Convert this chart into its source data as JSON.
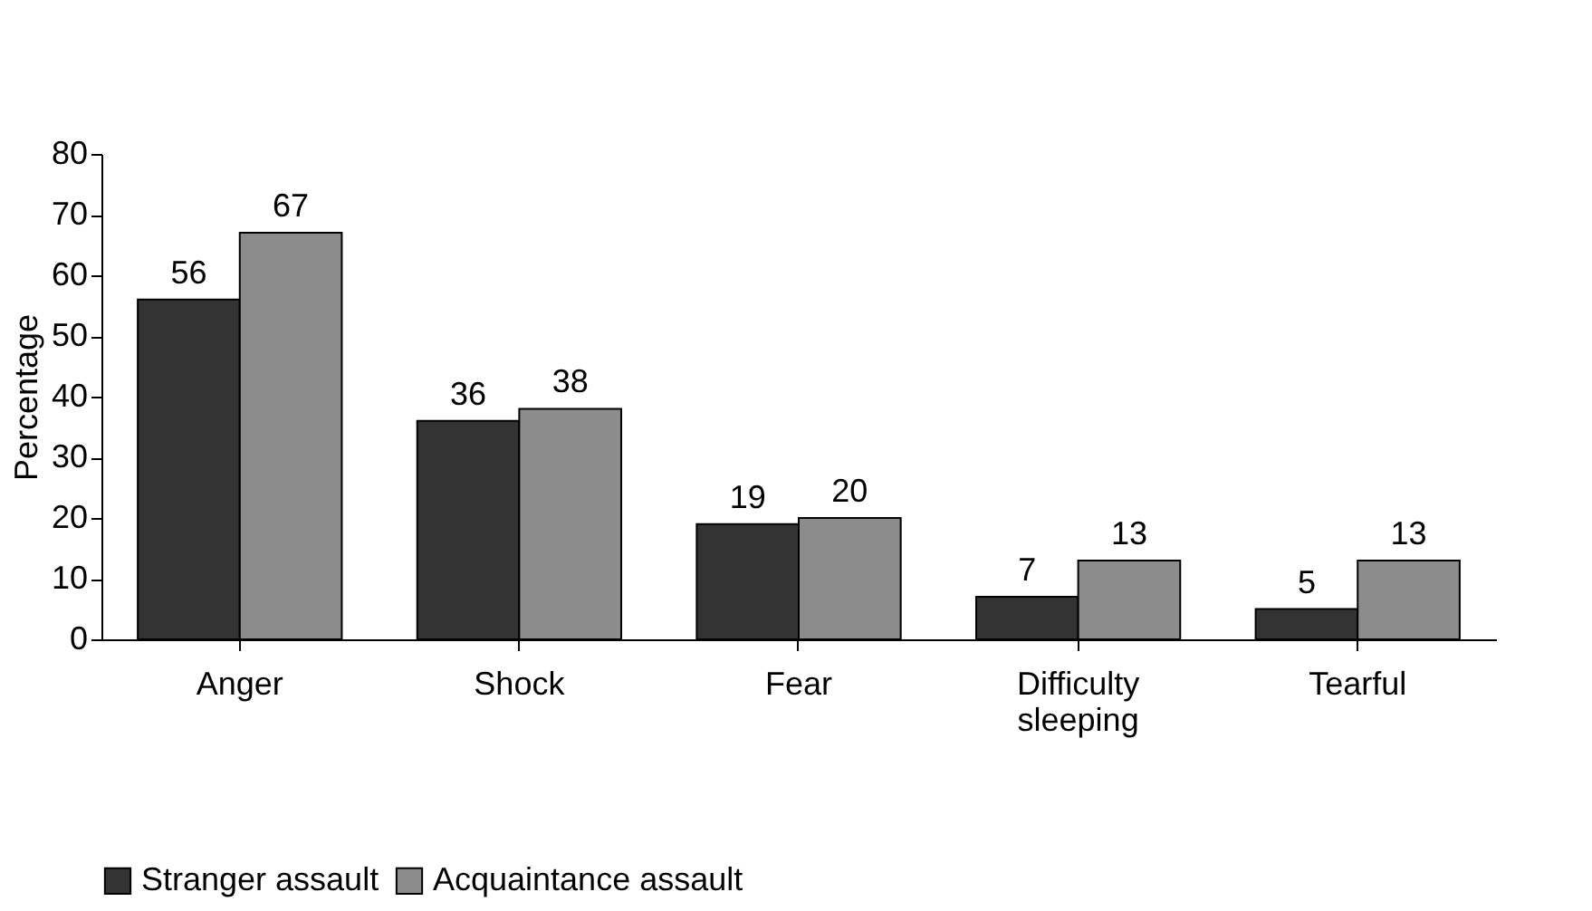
{
  "chart_data": {
    "type": "bar",
    "ylabel": "Percentage",
    "categories": [
      "Anger",
      "Shock",
      "Fear",
      "Difficulty sleeping",
      "Tearful"
    ],
    "series": [
      {
        "name": "Stranger assault",
        "color": "#333333",
        "values": [
          56,
          36,
          19,
          7,
          5
        ]
      },
      {
        "name": "Acquaintance assault",
        "color": "#8c8c8c",
        "values": [
          67,
          38,
          20,
          13,
          13
        ]
      }
    ],
    "ylim": [
      0,
      80
    ],
    "yticks": [
      0,
      10,
      20,
      30,
      40,
      50,
      60,
      70,
      80
    ],
    "data_labels": true,
    "legend": "bottom",
    "grid": false
  }
}
